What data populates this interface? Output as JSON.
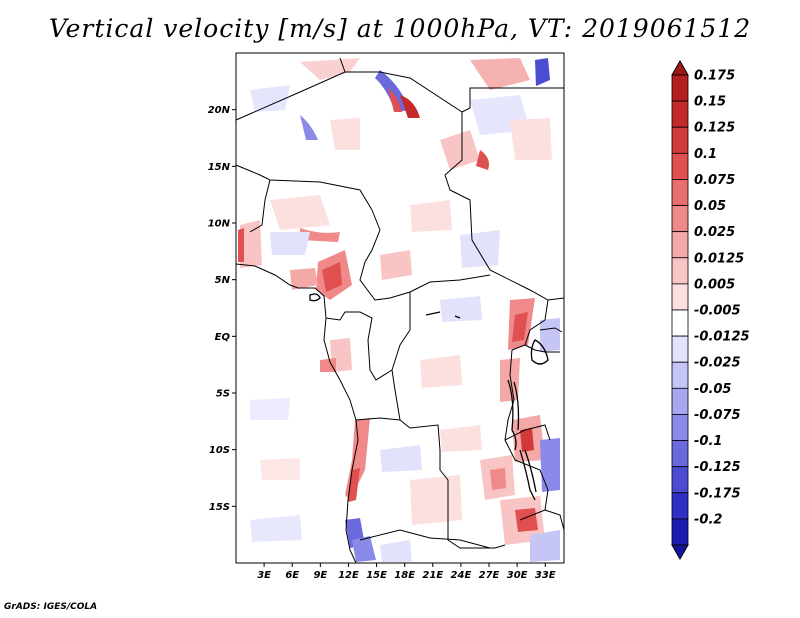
{
  "title": "Vertical velocity [m/s] at 1000hPa, VT: 2019061512",
  "credit": "GrADS: IGES/COLA",
  "map": {
    "region": "Central Africa",
    "lon_range": [
      0,
      35
    ],
    "lat_range": [
      -20,
      25
    ],
    "lat_ticks": [
      {
        "value": 20,
        "label": "20N"
      },
      {
        "value": 15,
        "label": "15N"
      },
      {
        "value": 10,
        "label": "10N"
      },
      {
        "value": 5,
        "label": "5N"
      },
      {
        "value": 0,
        "label": "EQ"
      },
      {
        "value": -5,
        "label": "5S"
      },
      {
        "value": -10,
        "label": "10S"
      },
      {
        "value": -15,
        "label": "15S"
      }
    ],
    "lon_ticks": [
      {
        "value": 3,
        "label": "3E"
      },
      {
        "value": 6,
        "label": "6E"
      },
      {
        "value": 9,
        "label": "9E"
      },
      {
        "value": 12,
        "label": "12E"
      },
      {
        "value": 15,
        "label": "15E"
      },
      {
        "value": 18,
        "label": "18E"
      },
      {
        "value": 21,
        "label": "21E"
      },
      {
        "value": 24,
        "label": "24E"
      },
      {
        "value": 27,
        "label": "27E"
      },
      {
        "value": 30,
        "label": "30E"
      },
      {
        "value": 33,
        "label": "33E"
      }
    ]
  },
  "colorbar": {
    "levels": [
      {
        "label": "0.175",
        "color": "#b41e1e"
      },
      {
        "label": "0.15",
        "color": "#c42a2a"
      },
      {
        "label": "0.125",
        "color": "#d23a3a"
      },
      {
        "label": "0.1",
        "color": "#e05050"
      },
      {
        "label": "0.075",
        "color": "#e86e6e"
      },
      {
        "label": "0.05",
        "color": "#f08a8a"
      },
      {
        "label": "0.025",
        "color": "#f5a8a8"
      },
      {
        "label": "0.0125",
        "color": "#f9c4c4"
      },
      {
        "label": "0.005",
        "color": "#fce0e0"
      },
      {
        "label": "-0.005",
        "color": "#ffffff"
      },
      {
        "label": "-0.0125",
        "color": "#e2e2fc"
      },
      {
        "label": "-0.025",
        "color": "#c6c6f6"
      },
      {
        "label": "-0.05",
        "color": "#a8a8f0"
      },
      {
        "label": "-0.075",
        "color": "#8a8ae8"
      },
      {
        "label": "-0.1",
        "color": "#6a6ade"
      },
      {
        "label": "-0.125",
        "color": "#4c4cd2"
      },
      {
        "label": "-0.175",
        "color": "#3030c4"
      },
      {
        "label": "-0.2",
        "color": "#1c1cb0"
      }
    ],
    "top_color": "#a01818",
    "bottom_color": "#14149c"
  }
}
